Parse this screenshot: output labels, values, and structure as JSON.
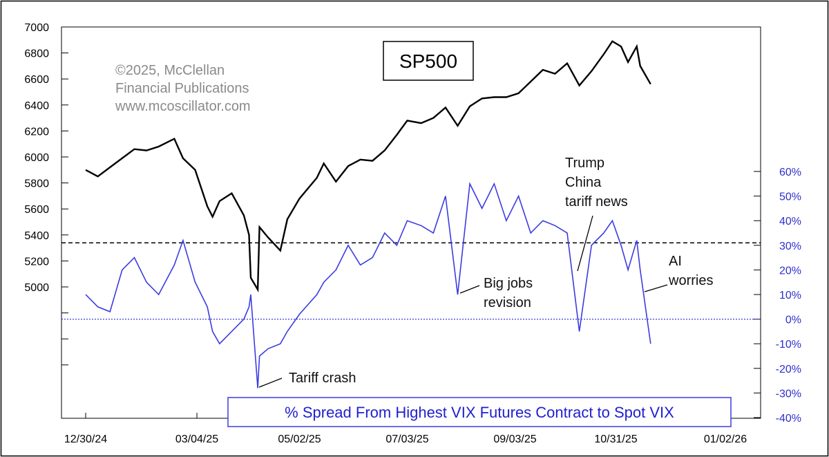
{
  "colors": {
    "sp500_line": "#000000",
    "spread_line": "#3b3be0",
    "right_axis": "#2f2fcf",
    "zero_line": "#3b3be0",
    "threshold_line": "#000000",
    "copyright": "#8a8a8a",
    "bottom_label_border": "#3b3be0"
  },
  "chart_data": {
    "type": "line",
    "title": "SP500",
    "copyright_lines": [
      "©2025, McClellan",
      "Financial Publications",
      "www.mcoscillator.com"
    ],
    "bottom_label": "% Spread From Highest VIX Futures Contract to Spot VIX",
    "x_tick_labels": [
      "12/30/24",
      "03/04/25",
      "05/02/25",
      "07/03/25",
      "09/03/25",
      "10/31/25",
      "01/02/26"
    ],
    "xlim": [
      "2024-12-30",
      "2026-01-02"
    ],
    "left_axis": {
      "ylim": [
        4400,
        7000
      ],
      "tick_labels": [
        "7000",
        "6800",
        "6600",
        "6400",
        "6200",
        "6000",
        "5800",
        "5600",
        "5400",
        "5200",
        "5000"
      ]
    },
    "right_axis": {
      "ylim": [
        -40,
        75
      ],
      "tick_labels": [
        "60%",
        "50%",
        "40%",
        "30%",
        "20%",
        "10%",
        "0%",
        "-10%",
        "-20%",
        "-30%",
        "-40%"
      ]
    },
    "reference_lines": [
      {
        "axis": "right",
        "value": 31,
        "style": "dashed"
      },
      {
        "axis": "right",
        "value": 0,
        "style": "dotted"
      }
    ],
    "annotations": [
      {
        "lines": [
          "Trump",
          "China",
          "tariff news"
        ],
        "date": "2025-10-10",
        "value_pct": 20
      },
      {
        "lines": [
          "AI",
          "worries"
        ],
        "date": "2025-11-20",
        "value_pct": 10
      },
      {
        "lines": [
          "Big jobs",
          "revision"
        ],
        "date": "2025-09-09",
        "value_pct": 10
      },
      {
        "lines": [
          "Tariff crash"
        ],
        "date": "2025-04-08",
        "value_pct": -29
      }
    ],
    "series": [
      {
        "axis": "left",
        "x": [
          "2024-12-30",
          "2025-01-06",
          "2025-01-13",
          "2025-01-20",
          "2025-01-27",
          "2025-02-03",
          "2025-02-10",
          "2025-02-19",
          "2025-02-24",
          "2025-03-03",
          "2025-03-10",
          "2025-03-13",
          "2025-03-17",
          "2025-03-24",
          "2025-03-31",
          "2025-04-03",
          "2025-04-04",
          "2025-04-08",
          "2025-04-09",
          "2025-04-14",
          "2025-04-21",
          "2025-04-25",
          "2025-05-02",
          "2025-05-12",
          "2025-05-16",
          "2025-05-23",
          "2025-05-30",
          "2025-06-06",
          "2025-06-13",
          "2025-06-20",
          "2025-06-27",
          "2025-07-03",
          "2025-07-11",
          "2025-07-18",
          "2025-07-25",
          "2025-08-01",
          "2025-08-08",
          "2025-08-15",
          "2025-08-22",
          "2025-08-29",
          "2025-09-05",
          "2025-09-12",
          "2025-09-19",
          "2025-09-26",
          "2025-10-03",
          "2025-10-10",
          "2025-10-17",
          "2025-10-24",
          "2025-10-29",
          "2025-11-03",
          "2025-11-07",
          "2025-11-12",
          "2025-11-14",
          "2025-11-20"
        ],
        "values": [
          5900,
          5850,
          5920,
          5990,
          6060,
          6050,
          6080,
          6140,
          5990,
          5900,
          5620,
          5540,
          5660,
          5720,
          5550,
          5400,
          5070,
          4980,
          5460,
          5380,
          5280,
          5520,
          5680,
          5840,
          5950,
          5810,
          5930,
          5980,
          5970,
          6050,
          6170,
          6280,
          6260,
          6300,
          6380,
          6240,
          6390,
          6450,
          6460,
          6460,
          6490,
          6580,
          6670,
          6640,
          6720,
          6550,
          6660,
          6790,
          6890,
          6850,
          6730,
          6850,
          6700,
          6560
        ]
      },
      {
        "axis": "right",
        "x": [
          "2024-12-30",
          "2025-01-06",
          "2025-01-13",
          "2025-01-20",
          "2025-01-27",
          "2025-02-03",
          "2025-02-10",
          "2025-02-19",
          "2025-02-24",
          "2025-03-03",
          "2025-03-10",
          "2025-03-13",
          "2025-03-17",
          "2025-03-24",
          "2025-03-31",
          "2025-04-03",
          "2025-04-04",
          "2025-04-08",
          "2025-04-09",
          "2025-04-14",
          "2025-04-21",
          "2025-04-25",
          "2025-05-02",
          "2025-05-12",
          "2025-05-16",
          "2025-05-23",
          "2025-05-30",
          "2025-06-06",
          "2025-06-13",
          "2025-06-20",
          "2025-06-27",
          "2025-07-03",
          "2025-07-11",
          "2025-07-18",
          "2025-07-25",
          "2025-08-01",
          "2025-08-08",
          "2025-08-15",
          "2025-08-22",
          "2025-08-29",
          "2025-09-05",
          "2025-09-12",
          "2025-09-19",
          "2025-09-26",
          "2025-10-03",
          "2025-10-10",
          "2025-10-17",
          "2025-10-24",
          "2025-10-29",
          "2025-11-03",
          "2025-11-07",
          "2025-11-12",
          "2025-11-14",
          "2025-11-20"
        ],
        "values": [
          10,
          5,
          3,
          20,
          25,
          15,
          10,
          22,
          32,
          15,
          5,
          -5,
          -10,
          -5,
          0,
          5,
          10,
          -28,
          -15,
          -12,
          -10,
          -5,
          2,
          10,
          15,
          20,
          30,
          22,
          25,
          35,
          30,
          40,
          38,
          35,
          50,
          10,
          55,
          45,
          55,
          40,
          50,
          35,
          40,
          38,
          35,
          -5,
          30,
          35,
          40,
          30,
          20,
          32,
          20,
          -10
        ]
      }
    ]
  }
}
